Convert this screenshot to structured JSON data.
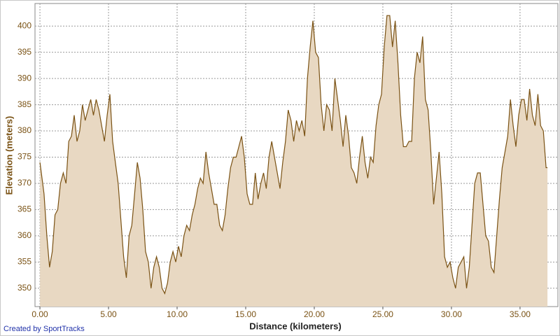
{
  "chart_data": {
    "type": "area",
    "x_label": "Distance (kilometers)",
    "y_label": "Elevation (meters)",
    "credit": "Created by SportTracks",
    "line_color": "#7a5214",
    "color": "#e8d8c2",
    "grid": true,
    "xlim": [
      -0.36,
      37.76
    ],
    "ylim": [
      346.5,
      404.3
    ],
    "xticks": [
      {
        "value": 0,
        "label": "0.00"
      },
      {
        "value": 5,
        "label": "5.00"
      },
      {
        "value": 10,
        "label": "10.00"
      },
      {
        "value": 15,
        "label": "15.00"
      },
      {
        "value": 20,
        "label": "20.00"
      },
      {
        "value": 25,
        "label": "25.00"
      },
      {
        "value": 30,
        "label": "30.00"
      },
      {
        "value": 35,
        "label": "35.00"
      }
    ],
    "yticks": [
      350,
      355,
      360,
      365,
      370,
      375,
      380,
      385,
      390,
      395,
      400
    ],
    "x": [
      0,
      0.3,
      0.5,
      0.7,
      0.9,
      1.1,
      1.3,
      1.5,
      1.7,
      1.9,
      2.1,
      2.3,
      2.5,
      2.7,
      2.9,
      3.1,
      3.3,
      3.5,
      3.7,
      3.9,
      4.1,
      4.3,
      4.5,
      4.7,
      4.9,
      5.1,
      5.3,
      5.5,
      5.7,
      5.9,
      6.1,
      6.3,
      6.5,
      6.7,
      6.9,
      7.1,
      7.3,
      7.5,
      7.7,
      7.9,
      8.1,
      8.3,
      8.5,
      8.7,
      8.9,
      9.1,
      9.3,
      9.5,
      9.7,
      9.9,
      10.1,
      10.3,
      10.5,
      10.7,
      10.9,
      11.1,
      11.3,
      11.5,
      11.7,
      11.9,
      12.1,
      12.3,
      12.5,
      12.7,
      12.9,
      13.1,
      13.3,
      13.5,
      13.7,
      13.9,
      14.1,
      14.3,
      14.5,
      14.7,
      14.9,
      15.1,
      15.3,
      15.5,
      15.7,
      15.9,
      16.1,
      16.3,
      16.5,
      16.7,
      16.9,
      17.1,
      17.3,
      17.5,
      17.7,
      17.9,
      18.1,
      18.3,
      18.5,
      18.7,
      18.9,
      19.1,
      19.3,
      19.5,
      19.7,
      19.9,
      20.1,
      20.3,
      20.5,
      20.7,
      20.9,
      21.1,
      21.3,
      21.5,
      21.7,
      21.9,
      22.1,
      22.3,
      22.5,
      22.7,
      22.9,
      23.1,
      23.3,
      23.5,
      23.7,
      23.9,
      24.1,
      24.3,
      24.5,
      24.7,
      24.9,
      25.1,
      25.3,
      25.5,
      25.7,
      25.9,
      26.1,
      26.3,
      26.5,
      26.7,
      26.9,
      27.1,
      27.3,
      27.5,
      27.7,
      27.9,
      28.1,
      28.3,
      28.5,
      28.7,
      28.9,
      29.1,
      29.3,
      29.5,
      29.7,
      29.9,
      30.1,
      30.3,
      30.5,
      30.7,
      30.9,
      31.1,
      31.3,
      31.5,
      31.7,
      31.9,
      32.1,
      32.3,
      32.5,
      32.7,
      32.9,
      33.1,
      33.3,
      33.5,
      33.7,
      33.9,
      34.1,
      34.3,
      34.5,
      34.7,
      34.9,
      35.1,
      35.3,
      35.5,
      35.7,
      35.9,
      36.1,
      36.3,
      36.5,
      36.7,
      36.9,
      37.0
    ],
    "values": [
      374,
      368,
      360,
      354,
      357,
      364,
      365,
      370,
      372,
      370,
      378,
      379,
      383,
      378,
      380,
      385,
      382,
      384,
      386,
      383,
      386,
      384,
      381,
      378,
      383,
      387,
      378,
      374,
      370,
      363,
      356,
      352,
      360,
      362,
      368,
      374,
      371,
      365,
      357,
      355,
      350,
      354,
      356,
      354,
      350,
      349,
      351,
      355,
      357,
      355,
      358,
      356,
      360,
      362,
      361,
      364,
      366,
      369,
      371,
      370,
      376,
      372,
      369,
      366,
      366,
      362,
      361,
      364,
      369,
      373,
      375,
      375,
      377,
      379,
      375,
      368,
      366,
      366,
      372,
      367,
      370,
      372,
      369,
      375,
      378,
      375,
      372,
      369,
      374,
      378,
      384,
      382,
      378,
      382,
      380,
      382,
      379,
      390,
      396,
      401,
      395,
      394,
      385,
      380,
      385,
      384,
      380,
      390,
      386,
      382,
      377,
      383,
      379,
      373,
      372,
      370,
      375,
      379,
      374,
      371,
      375,
      374,
      381,
      385,
      387,
      396,
      402,
      402,
      396,
      401,
      393,
      383,
      377,
      377,
      378,
      378,
      390,
      395,
      393,
      398,
      386,
      384,
      376,
      366,
      371,
      376,
      368,
      356,
      354,
      355,
      352,
      350,
      354,
      355,
      356,
      350,
      354,
      362,
      370,
      372,
      372,
      366,
      360,
      359,
      354,
      353,
      360,
      367,
      373,
      376,
      379,
      386,
      381,
      377,
      383,
      386,
      386,
      382,
      388,
      383,
      381,
      387,
      381,
      380,
      373,
      373
    ]
  }
}
